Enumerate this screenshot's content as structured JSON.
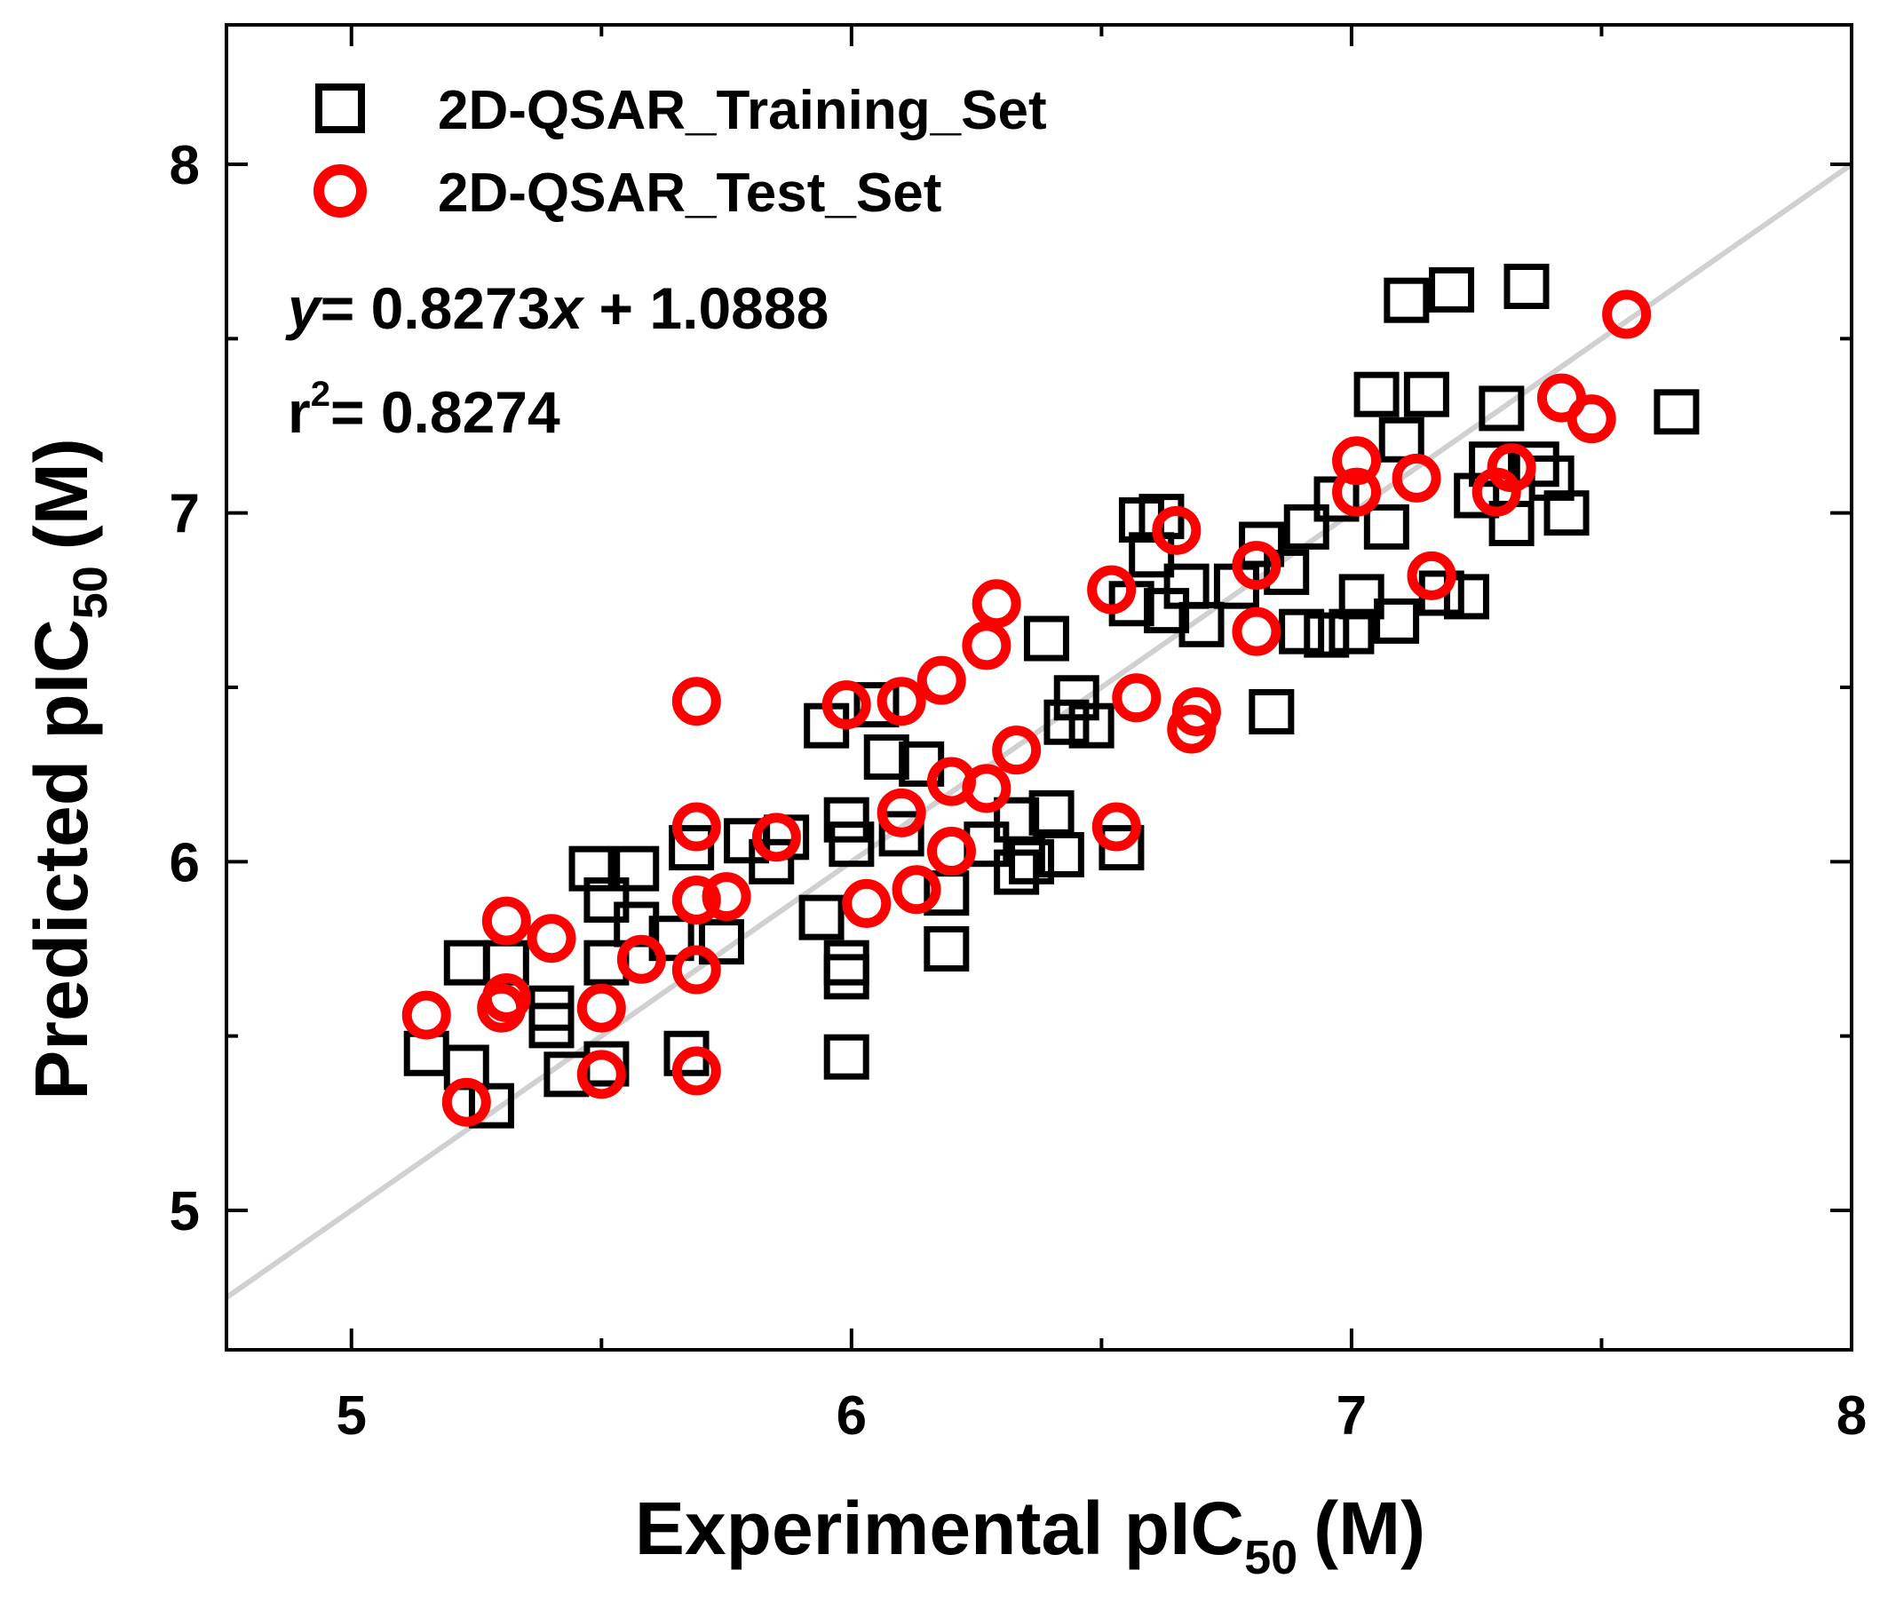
{
  "colors": {
    "training": "#000000",
    "test": "#ff0000",
    "identity_line": "#d0d0d0",
    "axes": "#000000"
  },
  "chart_data": {
    "type": "scatter",
    "xlabel": "Experimental pIC",
    "xlabel_sub": "50",
    "xlabel_unit": "(M)",
    "ylabel": "Predicted pIC",
    "ylabel_sub": "50",
    "ylabel_unit": "(M)",
    "xlim": [
      4.75,
      8.0
    ],
    "ylim": [
      4.6,
      8.4
    ],
    "x_ticks": [
      5,
      6,
      7,
      8
    ],
    "y_ticks": [
      5,
      6,
      7,
      8
    ],
    "x_tick_labels": [
      "5",
      "6",
      "7",
      "8"
    ],
    "y_tick_labels": [
      "5",
      "6",
      "7",
      "8"
    ],
    "legend_position": "top-left",
    "identity_line": {
      "from": [
        4.75,
        4.75
      ],
      "to": [
        8.0,
        8.0
      ]
    },
    "annotations": {
      "equation_y": "y",
      "equation_rest": "= 0.8273",
      "equation_x": "x",
      "equation_tail": " + 1.0888",
      "r2_prefix": "r",
      "r2_sup": "2",
      "r2_value": "= 0.8274"
    },
    "series": [
      {
        "name": "2D-QSAR_Training_Set",
        "marker": "square",
        "points": [
          [
            5.15,
            5.45
          ],
          [
            5.23,
            5.41
          ],
          [
            5.23,
            5.71
          ],
          [
            5.28,
            5.3
          ],
          [
            5.31,
            5.71
          ],
          [
            5.4,
            5.58
          ],
          [
            5.4,
            5.53
          ],
          [
            5.43,
            5.39
          ],
          [
            5.48,
            5.98
          ],
          [
            5.51,
            5.89
          ],
          [
            5.51,
            5.71
          ],
          [
            5.51,
            5.42
          ],
          [
            5.57,
            5.98
          ],
          [
            5.57,
            5.82
          ],
          [
            5.64,
            5.78
          ],
          [
            5.67,
            5.45
          ],
          [
            5.68,
            6.04
          ],
          [
            5.74,
            5.77
          ],
          [
            5.79,
            6.06
          ],
          [
            5.84,
            6.0
          ],
          [
            5.87,
            6.07
          ],
          [
            5.94,
            5.84
          ],
          [
            5.95,
            6.39
          ],
          [
            5.99,
            5.67
          ],
          [
            5.99,
            5.71
          ],
          [
            5.99,
            5.44
          ],
          [
            5.99,
            6.12
          ],
          [
            6.0,
            6.05
          ],
          [
            6.05,
            6.45
          ],
          [
            6.07,
            6.3
          ],
          [
            6.1,
            6.08
          ],
          [
            6.14,
            6.28
          ],
          [
            6.19,
            5.91
          ],
          [
            6.19,
            5.75
          ],
          [
            6.27,
            6.05
          ],
          [
            6.33,
            6.12
          ],
          [
            6.33,
            5.97
          ],
          [
            6.36,
            6.0
          ],
          [
            6.39,
            6.64
          ],
          [
            6.4,
            6.14
          ],
          [
            6.42,
            6.02
          ],
          [
            6.43,
            6.4
          ],
          [
            6.45,
            6.47
          ],
          [
            6.48,
            6.39
          ],
          [
            6.54,
            6.04
          ],
          [
            6.56,
            6.74
          ],
          [
            6.58,
            6.98
          ],
          [
            6.6,
            6.88
          ],
          [
            6.62,
            6.99
          ],
          [
            6.63,
            6.72
          ],
          [
            6.67,
            6.79
          ],
          [
            6.7,
            6.68
          ],
          [
            6.77,
            6.79
          ],
          [
            6.82,
            6.91
          ],
          [
            6.84,
            6.43
          ],
          [
            6.87,
            6.83
          ],
          [
            6.9,
            6.66
          ],
          [
            6.91,
            6.96
          ],
          [
            6.95,
            6.65
          ],
          [
            6.97,
            7.04
          ],
          [
            7.0,
            6.66
          ],
          [
            7.02,
            6.76
          ],
          [
            7.05,
            7.34
          ],
          [
            7.07,
            6.96
          ],
          [
            7.09,
            6.69
          ],
          [
            7.1,
            7.21
          ],
          [
            7.11,
            7.61
          ],
          [
            7.15,
            7.34
          ],
          [
            7.18,
            6.77
          ],
          [
            7.2,
            7.64
          ],
          [
            7.23,
            6.76
          ],
          [
            7.25,
            7.05
          ],
          [
            7.28,
            7.14
          ],
          [
            7.3,
            7.3
          ],
          [
            7.32,
            6.97
          ],
          [
            7.35,
            7.65
          ],
          [
            7.37,
            7.14
          ],
          [
            7.4,
            7.1
          ],
          [
            7.43,
            7.0
          ],
          [
            7.65,
            7.29
          ]
        ]
      },
      {
        "name": "2D-QSAR_Test_Set",
        "marker": "circle",
        "points": [
          [
            5.15,
            5.56
          ],
          [
            5.23,
            5.31
          ],
          [
            5.3,
            5.58
          ],
          [
            5.31,
            5.61
          ],
          [
            5.31,
            5.83
          ],
          [
            5.4,
            5.78
          ],
          [
            5.5,
            5.58
          ],
          [
            5.5,
            5.39
          ],
          [
            5.58,
            5.72
          ],
          [
            5.69,
            6.46
          ],
          [
            5.69,
            6.1
          ],
          [
            5.69,
            5.89
          ],
          [
            5.69,
            5.69
          ],
          [
            5.69,
            5.4
          ],
          [
            5.75,
            5.9
          ],
          [
            5.85,
            6.07
          ],
          [
            5.99,
            6.45
          ],
          [
            6.03,
            5.88
          ],
          [
            6.1,
            6.46
          ],
          [
            6.1,
            6.14
          ],
          [
            6.13,
            5.92
          ],
          [
            6.18,
            6.52
          ],
          [
            6.2,
            6.23
          ],
          [
            6.2,
            6.03
          ],
          [
            6.27,
            6.62
          ],
          [
            6.27,
            6.21
          ],
          [
            6.29,
            6.74
          ],
          [
            6.33,
            6.32
          ],
          [
            6.52,
            6.78
          ],
          [
            6.53,
            6.1
          ],
          [
            6.57,
            6.47
          ],
          [
            6.65,
            6.95
          ],
          [
            6.68,
            6.38
          ],
          [
            6.69,
            6.43
          ],
          [
            6.81,
            6.85
          ],
          [
            6.81,
            6.66
          ],
          [
            7.01,
            7.15
          ],
          [
            7.01,
            7.06
          ],
          [
            7.13,
            7.1
          ],
          [
            7.16,
            6.82
          ],
          [
            7.29,
            7.06
          ],
          [
            7.32,
            7.13
          ],
          [
            7.42,
            7.33
          ],
          [
            7.48,
            7.27
          ],
          [
            7.55,
            7.57
          ]
        ]
      }
    ]
  }
}
